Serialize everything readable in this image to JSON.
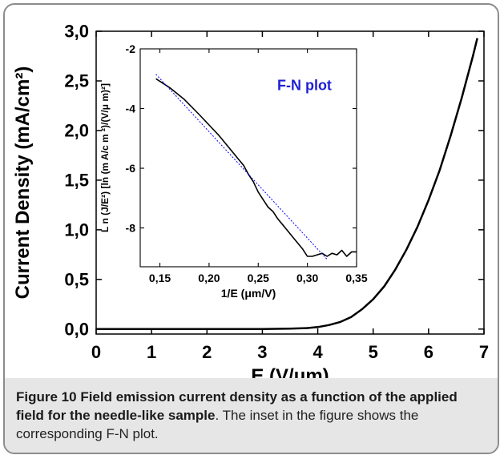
{
  "chart_data": [
    {
      "type": "line",
      "title": "",
      "xlabel": "E (V/μm)",
      "ylabel": "Current Density (mA/cm²)",
      "xlim": [
        0,
        7
      ],
      "ylim": [
        -0.05,
        3.0
      ],
      "x_ticks": [
        0,
        1,
        2,
        3,
        4,
        5,
        6,
        7
      ],
      "x_tick_labels": [
        "0",
        "1",
        "2",
        "3",
        "4",
        "5",
        "6",
        "7"
      ],
      "y_ticks": [
        0.0,
        0.5,
        1.0,
        1.5,
        2.0,
        2.5,
        3.0
      ],
      "y_tick_labels": [
        "0,0",
        "0,5",
        "1,0",
        "1,5",
        "2,0",
        "2,5",
        "3,0"
      ],
      "series": [
        {
          "color": "#000000",
          "x": [
            0,
            1,
            2,
            3,
            3.5,
            3.8,
            4.0,
            4.2,
            4.4,
            4.6,
            4.8,
            5.0,
            5.2,
            5.4,
            5.6,
            5.8,
            6.0,
            6.2,
            6.4,
            6.6,
            6.8,
            6.88
          ],
          "y": [
            0,
            0,
            0,
            0,
            0.005,
            0.01,
            0.02,
            0.04,
            0.07,
            0.12,
            0.2,
            0.3,
            0.43,
            0.6,
            0.8,
            1.03,
            1.3,
            1.6,
            1.95,
            2.33,
            2.75,
            2.93
          ]
        }
      ]
    },
    {
      "type": "line",
      "title": "",
      "annotation": "F-N plot",
      "xlabel": "1/E (μm/V)",
      "ylabel": "L n (J/E²) [ln (m A/c m ²)/(V/μ m)²]",
      "xlim": [
        0.13,
        0.35
      ],
      "ylim": [
        -9.3,
        -2.0
      ],
      "x_ticks": [
        0.15,
        0.2,
        0.25,
        0.3,
        0.35
      ],
      "x_tick_labels": [
        "0,15",
        "0,20",
        "0,25",
        "0,30",
        "0,35"
      ],
      "y_ticks": [
        -2,
        -4,
        -6,
        -8
      ],
      "y_tick_labels": [
        "-2",
        "-4",
        "-6",
        "-8"
      ],
      "series": [
        {
          "color": "#000000",
          "style": "solid",
          "x": [
            0.146,
            0.16,
            0.175,
            0.19,
            0.2,
            0.21,
            0.22,
            0.23,
            0.235,
            0.24,
            0.245,
            0.25,
            0.255,
            0.26,
            0.265,
            0.27,
            0.275,
            0.28,
            0.285,
            0.29,
            0.295,
            0.3,
            0.305,
            0.31,
            0.315,
            0.32,
            0.325,
            0.33,
            0.335,
            0.34,
            0.345,
            0.35
          ],
          "y": [
            -3.0,
            -3.3,
            -3.7,
            -4.2,
            -4.55,
            -4.9,
            -5.3,
            -5.7,
            -5.9,
            -6.2,
            -6.45,
            -6.8,
            -7.05,
            -7.3,
            -7.45,
            -7.7,
            -7.9,
            -8.1,
            -8.3,
            -8.5,
            -8.7,
            -8.95,
            -8.95,
            -8.9,
            -8.85,
            -8.95,
            -8.85,
            -8.9,
            -8.75,
            -8.95,
            -8.8,
            -8.8
          ]
        },
        {
          "color": "#0000ff",
          "style": "dotted",
          "x": [
            0.146,
            0.32
          ],
          "y": [
            -2.85,
            -9.05
          ]
        }
      ]
    }
  ],
  "caption": {
    "label": "Figure 10",
    "bold_text": "Field emission current density as a function of the applied field for the needle-like sample",
    "text": ". The inset in the figure shows the corresponding F-N plot."
  }
}
